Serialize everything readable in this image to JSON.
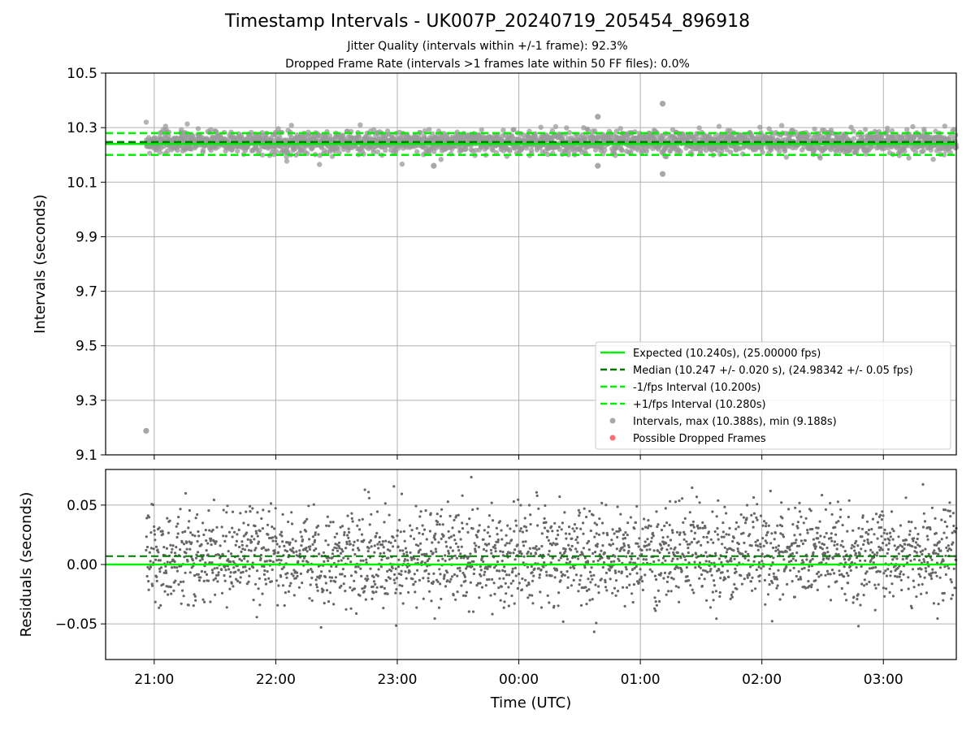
{
  "header": {
    "title": "Timestamp Intervals - UK007P_20240719_205454_896918",
    "subtitle_line1": "Jitter Quality (intervals within +/-1 frame): 92.3%",
    "subtitle_line2": "Dropped Frame Rate (intervals >1 frames late within 50 FF files): 0.0%"
  },
  "colors": {
    "expected": "#00ee00",
    "median": "#007700",
    "interval_bounds": "#00ee00",
    "intervals": "#999999",
    "residuals": "#666666",
    "dropped": "#ff5555",
    "grid": "#b0b0b0"
  },
  "chart_data": [
    {
      "type": "scatter",
      "ylabel": "Intervals (seconds)",
      "ylim": [
        9.1,
        10.5
      ],
      "yticks": [
        "9.1",
        "9.3",
        "9.5",
        "9.7",
        "9.9",
        "10.1",
        "10.3",
        "10.5"
      ],
      "xlim": [
        "20:36",
        "03:36"
      ],
      "xticks": [
        "21:00",
        "22:00",
        "23:00",
        "00:00",
        "01:00",
        "02:00",
        "03:00"
      ],
      "grid": true,
      "legend_position": "lower-right",
      "reference_lines": {
        "expected": 10.24,
        "median": 10.247,
        "minus_one_fps": 10.2,
        "plus_one_fps": 10.28
      },
      "series": [
        {
          "name": "Expected (10.240s), (25.00000 fps)",
          "kind": "solid-line"
        },
        {
          "name": "Median (10.247 +/- 0.020 s), (24.98342 +/- 0.05 fps)",
          "kind": "dashed-line"
        },
        {
          "name": "-1/fps Interval (10.200s)",
          "kind": "dashed-line"
        },
        {
          "name": "+1/fps Interval (10.280s)",
          "kind": "dashed-line"
        },
        {
          "name": "Intervals, max (10.388s), min (9.188s)",
          "kind": "points"
        },
        {
          "name": "Possible Dropped Frames",
          "kind": "points"
        }
      ],
      "interval_summary": {
        "count": 2460,
        "center": 10.247,
        "spread": 0.02,
        "max": 10.388,
        "min": 9.188
      },
      "notable_points": [
        {
          "x": "20:56",
          "y": 9.188
        },
        {
          "x": "01:11",
          "y": 10.388
        },
        {
          "x": "01:11",
          "y": 10.13
        },
        {
          "x": "00:39",
          "y": 10.34
        },
        {
          "x": "00:39",
          "y": 10.16
        },
        {
          "x": "23:18",
          "y": 10.16
        }
      ],
      "dropped_frames": []
    },
    {
      "type": "scatter",
      "ylabel": "Residuals (seconds)",
      "xlabel": "Time (UTC)",
      "ylim": [
        -0.08,
        0.08
      ],
      "yticks": [
        "−0.05",
        "0.00",
        "0.05"
      ],
      "xlim": [
        "20:36",
        "03:36"
      ],
      "xticks": [
        "21:00",
        "22:00",
        "23:00",
        "00:00",
        "01:00",
        "02:00",
        "03:00"
      ],
      "grid": true,
      "reference_lines": {
        "expected_residual": 0.0,
        "median_residual": 0.007
      },
      "residual_summary": {
        "count": 2460,
        "center": 0.007,
        "spread": 0.02
      }
    }
  ]
}
